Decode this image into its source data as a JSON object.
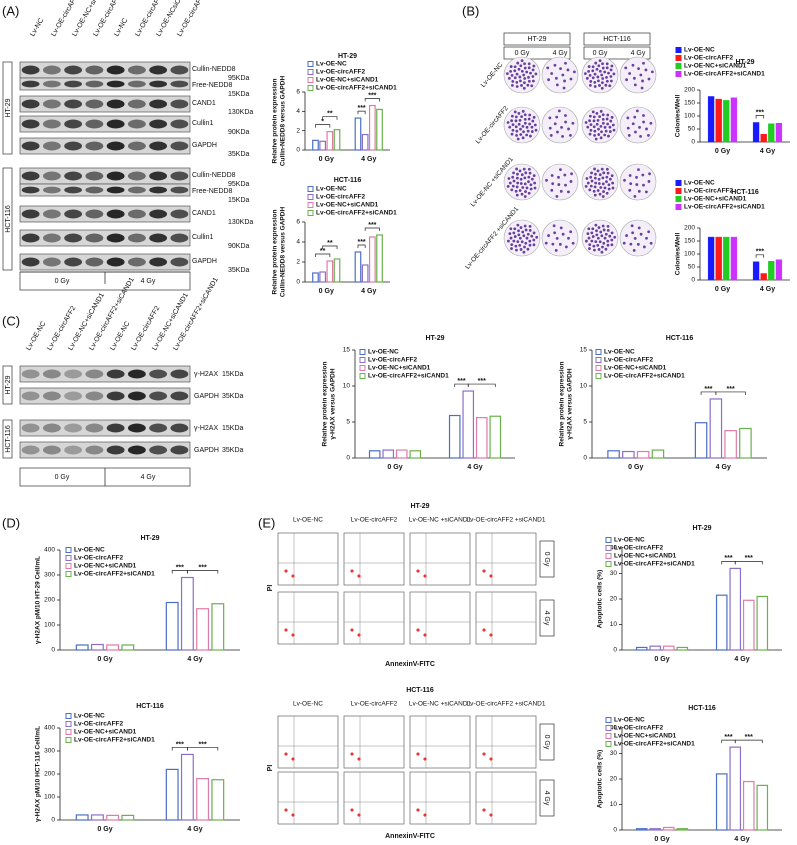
{
  "panel_letters": [
    "(A)",
    "(B)",
    "(C)",
    "(D)",
    "(E)"
  ],
  "blot_a": {
    "lanes": [
      "Lv-NC",
      "Lv-OE-circAFF2",
      "Lv-OE-NC+siCAND1",
      "Lv-OE-circAFF2+siCAND1",
      "Lv-NC",
      "Lv-OE-circAFF2",
      "Lv-OE-NCsiCAND1",
      "Lv-OE-circAFF2+siCAND1"
    ],
    "bands": [
      {
        "name": "Cullin-NEDD8",
        "size": "95KDa"
      },
      {
        "name": "Free-NEDD8",
        "size": "15KDa"
      },
      {
        "name": "CAND1",
        "size": "130KDa"
      },
      {
        "name": "Cullin1",
        "size": "90KDa"
      },
      {
        "name": "GAPDH",
        "size": "35KDa"
      }
    ],
    "cell_lines": [
      "HT-29",
      "HCT-116"
    ],
    "doses": [
      "0 Gy",
      "4 Gy"
    ]
  },
  "colony_b": {
    "cell_lines": [
      "HT-29",
      "HCT-116"
    ],
    "doses": [
      "0 Gy",
      "4 Gy",
      "0 Gy",
      "4 Gy"
    ],
    "rows": [
      "Lv-OE-NC",
      "Lv-OE-circAFF2",
      "Lv-OE-NC +siCAND1",
      "Lv-OE-circAFF2 +siCAND1"
    ]
  },
  "blot_c": {
    "lanes": [
      "Lv-OE-NC",
      "Lv-OE-circAFF2",
      "Lv-OE-NC+siCAND1",
      "Lv-OE-circAFF2+siCAND1",
      "Lv-OE-NC",
      "Lv-OE-circAFF2",
      "Lv-OE-NC+siCAND1",
      "Lv-OE-circAFF2+siCAND1"
    ],
    "bands": [
      {
        "name": "γ-H2AX",
        "size": "15KDa"
      },
      {
        "name": "GAPDH",
        "size": "35KDa"
      }
    ],
    "cell_lines": [
      "HT-29",
      "HCT-116"
    ],
    "doses": [
      "0 Gy",
      "4 Gy"
    ]
  },
  "flow_e": [
    {
      "title": "HT-29",
      "columns": [
        "Lv-OE-NC",
        "Lv-OE-circAFF2",
        "Lv-OE-NC +siCAND1",
        "Lv-OE-circAFF2 +siCAND1"
      ],
      "doses": [
        "0 Gy",
        "4 Gy"
      ],
      "y_label": "PI",
      "x_label": "AnnexinV-FITC"
    },
    {
      "title": "HCT-116",
      "columns": [
        "Lv-OE-NC",
        "Lv-OE-circAFF2",
        "Lv-OE-NC +siCAND1",
        "Lv-OE-circAFF2 +siCAND1"
      ],
      "doses": [
        "0 Gy",
        "4 Gy"
      ],
      "y_label": "PI",
      "x_label": "AnnexinV-FITC"
    }
  ],
  "chart_data": [
    {
      "type": "bar",
      "title": "HT-29",
      "y_label": [
        "Relative protein expression",
        "Cullin-NEDD8 versus GAPDH"
      ],
      "categories": [
        "0 Gy",
        "4 Gy"
      ],
      "style": "outline",
      "ylim": [
        0,
        6
      ],
      "yticks": [
        0,
        2,
        4,
        6
      ],
      "annotations": [
        "*",
        "**",
        "***",
        "***"
      ],
      "series": [
        {
          "name": "Lv-OE-NC",
          "color": "#4a6fc4",
          "values": [
            1.0,
            3.3
          ]
        },
        {
          "name": "Lv-OE-circAFF2",
          "color": "#8b6fc8",
          "values": [
            0.9,
            1.6
          ]
        },
        {
          "name": "Lv-OE-NC+siCAND1",
          "color": "#e07aa8",
          "values": [
            1.9,
            4.6
          ]
        },
        {
          "name": "Lv-OE-circAFF2+siCAND1",
          "color": "#6ab04c",
          "values": [
            2.1,
            4.2
          ]
        }
      ]
    },
    {
      "type": "bar",
      "title": "HCT-116",
      "y_label": [
        "Relative protein expression",
        "Cullin-NEDD8 versus GAPDH"
      ],
      "categories": [
        "0 Gy",
        "4 Gy"
      ],
      "style": "outline",
      "ylim": [
        0,
        6
      ],
      "yticks": [
        0,
        2,
        4,
        6
      ],
      "annotations": [
        "**",
        "**",
        "***",
        "***"
      ],
      "series": [
        {
          "name": "Lv-OE-NC",
          "color": "#4a6fc4",
          "values": [
            0.9,
            3.0
          ]
        },
        {
          "name": "Lv-OE-circAFF2",
          "color": "#8b6fc8",
          "values": [
            1.0,
            1.7
          ]
        },
        {
          "name": "Lv-OE-NC+siCAND1",
          "color": "#e07aa8",
          "values": [
            2.1,
            4.5
          ]
        },
        {
          "name": "Lv-OE-circAFF2+siCAND1",
          "color": "#6ab04c",
          "values": [
            2.3,
            4.7
          ]
        }
      ]
    },
    {
      "type": "bar",
      "title": "HT-29",
      "y_label": [
        "Colonies/Well"
      ],
      "categories": [
        "0 Gy",
        "4 Gy"
      ],
      "style": "filled",
      "ylim": [
        0,
        200
      ],
      "yticks": [
        0,
        50,
        100,
        150,
        200
      ],
      "annotations": [
        "***"
      ],
      "series": [
        {
          "name": "Lv-OE-NC",
          "color": "#1a1aff",
          "values": [
            175,
            75
          ]
        },
        {
          "name": "Lv-OE-circAFF2",
          "color": "#ff1a1a",
          "values": [
            165,
            30
          ]
        },
        {
          "name": "Lv-OE-NC+siCAND1",
          "color": "#22cc22",
          "values": [
            160,
            70
          ]
        },
        {
          "name": "Lv-OE-circAFF2+siCAND1",
          "color": "#cc33ff",
          "values": [
            170,
            72
          ]
        }
      ]
    },
    {
      "type": "bar",
      "title": "HCT-116",
      "y_label": [
        "Colonies/Well"
      ],
      "categories": [
        "0 Gy",
        "4 Gy"
      ],
      "style": "filled",
      "ylim": [
        0,
        200
      ],
      "yticks": [
        0,
        50,
        100,
        150,
        200
      ],
      "annotations": [
        "***"
      ],
      "series": [
        {
          "name": "Lv-OE-NC",
          "color": "#1a1aff",
          "values": [
            165,
            70
          ]
        },
        {
          "name": "Lv-OE-circAFF2",
          "color": "#ff1a1a",
          "values": [
            165,
            25
          ]
        },
        {
          "name": "Lv-OE-NC+siCAND1",
          "color": "#22cc22",
          "values": [
            165,
            72
          ]
        },
        {
          "name": "Lv-OE-circAFF2+siCAND1",
          "color": "#cc33ff",
          "values": [
            165,
            78
          ]
        }
      ]
    },
    {
      "type": "bar",
      "title": "HT-29",
      "y_label": [
        "Relative protein expression",
        "γ-H2AX versus GAPDH"
      ],
      "categories": [
        "0 Gy",
        "4 Gy"
      ],
      "style": "outline",
      "ylim": [
        0,
        15
      ],
      "yticks": [
        0,
        5,
        10,
        15
      ],
      "annotations": [
        "***",
        "***"
      ],
      "series": [
        {
          "name": "Lv-OE-NC",
          "color": "#4a6fc4",
          "values": [
            1.0,
            5.9
          ]
        },
        {
          "name": "Lv-OE-circAFF2",
          "color": "#8b6fc8",
          "values": [
            1.1,
            9.3
          ]
        },
        {
          "name": "Lv-OE-NC+siCAND1",
          "color": "#e07aa8",
          "values": [
            1.1,
            5.6
          ]
        },
        {
          "name": "Lv-OE-circAFF2+siCAND1",
          "color": "#6ab04c",
          "values": [
            1.0,
            5.8
          ]
        }
      ]
    },
    {
      "type": "bar",
      "title": "HCT-116",
      "y_label": [
        "Relative protein expression",
        "γ-H2AX versus GAPDH"
      ],
      "categories": [
        "0 Gy",
        "4 Gy"
      ],
      "style": "outline",
      "ylim": [
        0,
        15
      ],
      "yticks": [
        0,
        5,
        10,
        15
      ],
      "annotations": [
        "***",
        "***"
      ],
      "series": [
        {
          "name": "Lv-OE-NC",
          "color": "#4a6fc4",
          "values": [
            1.0,
            4.9
          ]
        },
        {
          "name": "Lv-OE-circAFF2",
          "color": "#8b6fc8",
          "values": [
            0.9,
            8.2
          ]
        },
        {
          "name": "Lv-OE-NC+siCAND1",
          "color": "#e07aa8",
          "values": [
            0.9,
            3.8
          ]
        },
        {
          "name": "Lv-OE-circAFF2+siCAND1",
          "color": "#6ab04c",
          "values": [
            1.1,
            4.1
          ]
        }
      ]
    },
    {
      "type": "bar",
      "title": "HT-29",
      "y_label": [
        "γ-H2AX pM/10 HT-29 Cell/mL"
      ],
      "categories": [
        "0 Gy",
        "4 Gy"
      ],
      "style": "outline",
      "ylim": [
        0,
        400
      ],
      "yticks": [
        0,
        100,
        200,
        300,
        400
      ],
      "annotations": [
        "***",
        "***"
      ],
      "series": [
        {
          "name": "Lv-OE-NC",
          "color": "#4a6fc4",
          "values": [
            20,
            190
          ]
        },
        {
          "name": "Lv-OE-circAFF2",
          "color": "#8b6fc8",
          "values": [
            22,
            290
          ]
        },
        {
          "name": "Lv-OE-NC+siCAND1",
          "color": "#e07aa8",
          "values": [
            20,
            165
          ]
        },
        {
          "name": "Lv-OE-circAFF2+siCAND1",
          "color": "#6ab04c",
          "values": [
            20,
            185
          ]
        }
      ]
    },
    {
      "type": "bar",
      "title": "HCT-116",
      "y_label": [
        "γ-H2AX pM/10 HCT-116 Cell/mL"
      ],
      "categories": [
        "0 Gy",
        "4 Gy"
      ],
      "style": "outline",
      "ylim": [
        0,
        400
      ],
      "yticks": [
        0,
        100,
        200,
        300,
        400
      ],
      "annotations": [
        "***",
        "***"
      ],
      "series": [
        {
          "name": "Lv-OE-NC",
          "color": "#4a6fc4",
          "values": [
            22,
            220
          ]
        },
        {
          "name": "Lv-OE-circAFF2",
          "color": "#8b6fc8",
          "values": [
            22,
            285
          ]
        },
        {
          "name": "Lv-OE-NC+siCAND1",
          "color": "#e07aa8",
          "values": [
            20,
            180
          ]
        },
        {
          "name": "Lv-OE-circAFF2+siCAND1",
          "color": "#6ab04c",
          "values": [
            20,
            175
          ]
        }
      ]
    },
    {
      "type": "bar",
      "title": "HT-29",
      "y_label": [
        "Apoptotic cells (%)"
      ],
      "categories": [
        "0 Gy",
        "4 Gy"
      ],
      "style": "outline",
      "ylim": [
        0,
        40
      ],
      "yticks": [
        0,
        10,
        20,
        30,
        40
      ],
      "annotations": [
        "***",
        "***"
      ],
      "series": [
        {
          "name": "Lv-OE-NC",
          "color": "#4a6fc4",
          "values": [
            1.0,
            21.5
          ]
        },
        {
          "name": "Lv-OE-circAFF2",
          "color": "#8b6fc8",
          "values": [
            1.5,
            32
          ]
        },
        {
          "name": "Lv-OE-NC+siCAND1",
          "color": "#e07aa8",
          "values": [
            1.5,
            19.5
          ]
        },
        {
          "name": "Lv-OE-circAFF2+siCAND1",
          "color": "#6ab04c",
          "values": [
            1.0,
            21
          ]
        }
      ]
    },
    {
      "type": "bar",
      "title": "HCT-116",
      "y_label": [
        "Apoptotic cells (%)"
      ],
      "categories": [
        "0 Gy",
        "4 Gy"
      ],
      "style": "outline",
      "ylim": [
        0,
        40
      ],
      "yticks": [
        0,
        10,
        20,
        30,
        40
      ],
      "annotations": [
        "***",
        "***"
      ],
      "series": [
        {
          "name": "Lv-OE-NC",
          "color": "#4a6fc4",
          "values": [
            0.5,
            22
          ]
        },
        {
          "name": "Lv-OE-circAFF2",
          "color": "#8b6fc8",
          "values": [
            0.5,
            32.5
          ]
        },
        {
          "name": "Lv-OE-NC+siCAND1",
          "color": "#e07aa8",
          "values": [
            1.0,
            19
          ]
        },
        {
          "name": "Lv-OE-circAFF2+siCAND1",
          "color": "#6ab04c",
          "values": [
            0.5,
            17.5
          ]
        }
      ]
    }
  ]
}
